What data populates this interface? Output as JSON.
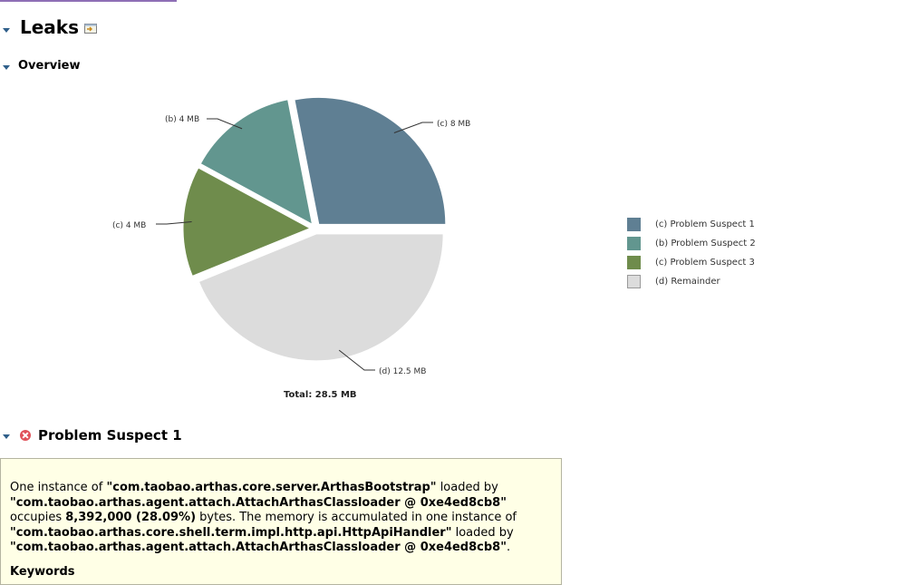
{
  "page": {
    "title": "Leaks",
    "overview_heading": "Overview",
    "icon": "open-details-icon"
  },
  "chart_data": {
    "type": "pie",
    "title": "",
    "slices": [
      {
        "label": "(c) 8 MB",
        "legend": "(c) Problem Suspect 1",
        "value": 8,
        "color": "#5f7f93"
      },
      {
        "label": "(b) 4 MB",
        "legend": "(b) Problem Suspect 2",
        "value": 4,
        "color": "#62968f"
      },
      {
        "label": "(c) 4 MB",
        "legend": "(c) Problem Suspect 3",
        "value": 4,
        "color": "#6f8c4c"
      },
      {
        "label": "(d) 12.5 MB",
        "legend": "(d) Remainder",
        "value": 12.5,
        "color": "#dcdcdc"
      }
    ],
    "total_label": "Total: 28.5 MB",
    "legend_position": "right"
  },
  "suspect": {
    "title": "Problem Suspect 1",
    "icon": "error-icon",
    "t1": "One instance of ",
    "b1": "\"com.taobao.arthas.core.server.ArthasBootstrap\"",
    "t2": " loaded by ",
    "b2": "\"com.taobao.arthas.agent.attach.AttachArthasClassloader @ 0xe4ed8cb8\"",
    "t3": " occupies ",
    "b3": "8,392,000 (28.09%)",
    "t4": " bytes. The memory is accumulated in one instance of ",
    "b4": "\"com.taobao.arthas.core.shell.term.impl.http.api.HttpApiHandler\"",
    "t5": " loaded by ",
    "b5": "\"com.taobao.arthas.agent.attach.AttachArthasClassloader @ 0xe4ed8cb8\"",
    "t6": ".",
    "keywords_label": "Keywords"
  }
}
